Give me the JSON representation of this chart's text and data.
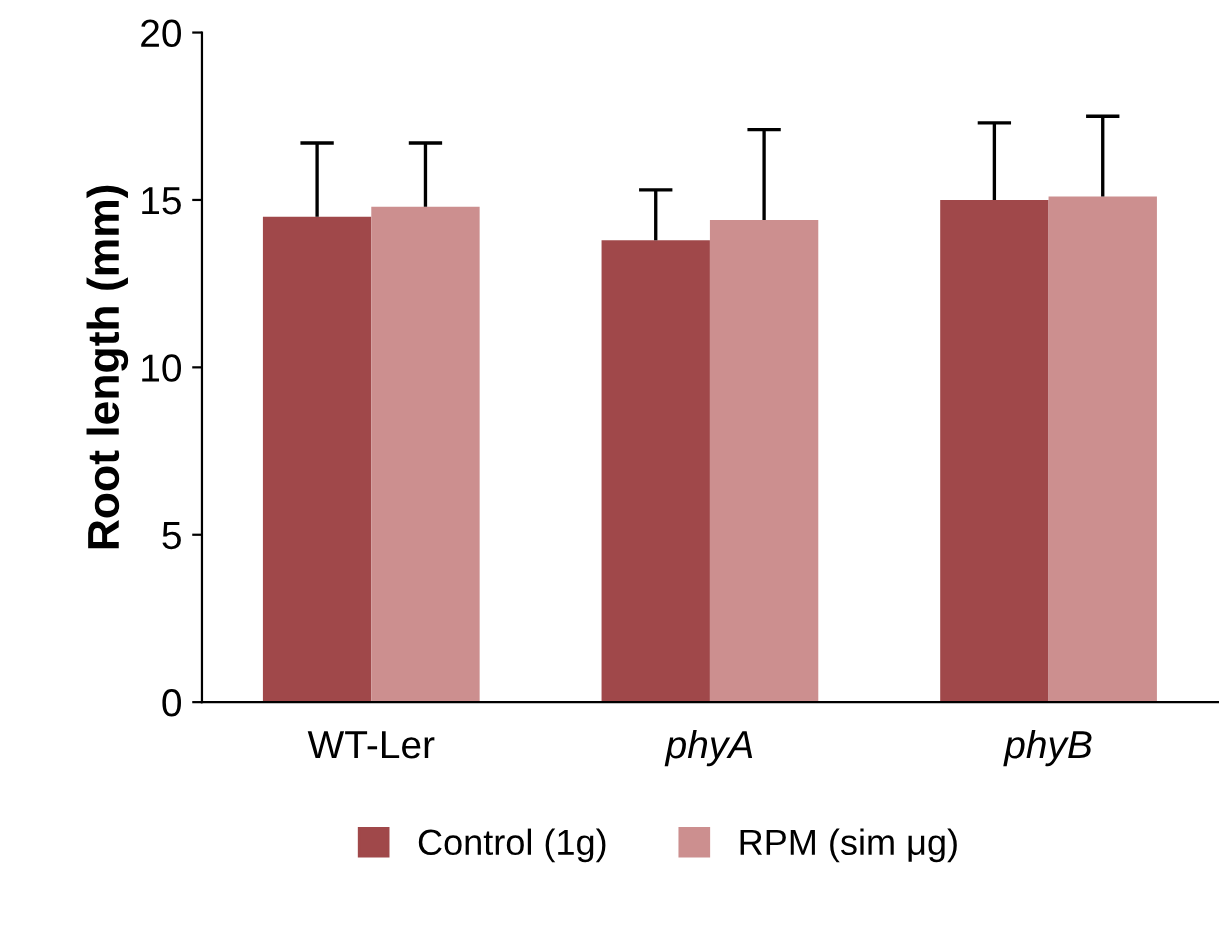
{
  "chart_data": {
    "type": "bar",
    "ylabel": "Root length (mm)",
    "categories": [
      "WT-Ler",
      "phyA",
      "phyB"
    ],
    "series": [
      {
        "name": "Control (1g)",
        "color": "#a0484a",
        "values": [
          14.5,
          13.8,
          15.0
        ],
        "errors": [
          [
            14.5,
            16.7
          ],
          [
            13.8,
            15.3
          ],
          [
            15.0,
            17.3
          ]
        ]
      },
      {
        "name": "RPM (sim μg)",
        "color": "#cc8f8f",
        "values": [
          14.8,
          14.4,
          15.1
        ],
        "errors": [
          [
            14.8,
            16.7
          ],
          [
            14.4,
            17.1
          ],
          [
            15.1,
            17.5
          ]
        ]
      }
    ],
    "ylim": [
      0,
      20
    ],
    "yticks": [
      0,
      5,
      10,
      15,
      20
    ],
    "grid": false,
    "legend": "bottom"
  }
}
